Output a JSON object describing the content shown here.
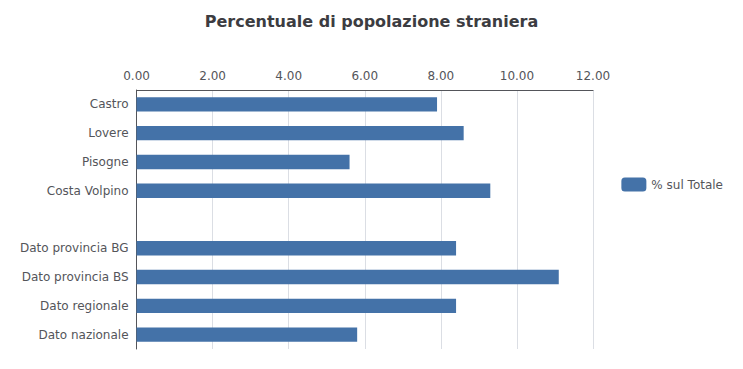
{
  "chart_data": {
    "type": "bar",
    "orientation": "horizontal",
    "title": "Percentuale di popolazione straniera",
    "categories": [
      "Dato nazionale",
      "Dato regionale",
      "Dato provincia BS",
      "Dato provincia BG",
      null,
      "Costa Volpino",
      "Pisogne",
      "Lovere",
      "Castro"
    ],
    "series": [
      {
        "name": "% sul Totale",
        "color": "#4472a8",
        "values": [
          5.8,
          8.4,
          11.1,
          8.4,
          null,
          9.3,
          5.6,
          8.6,
          7.9
        ]
      }
    ],
    "xlim": [
      0,
      12
    ],
    "xticks": [
      {
        "value": 0,
        "label": "0.00"
      },
      {
        "value": 2,
        "label": "2.00"
      },
      {
        "value": 4,
        "label": "4.00"
      },
      {
        "value": 6,
        "label": "6.00"
      },
      {
        "value": 8,
        "label": "8.00"
      },
      {
        "value": 10,
        "label": "10.00"
      },
      {
        "value": 12,
        "label": "12.00"
      }
    ],
    "grid": true,
    "legend": "right"
  }
}
